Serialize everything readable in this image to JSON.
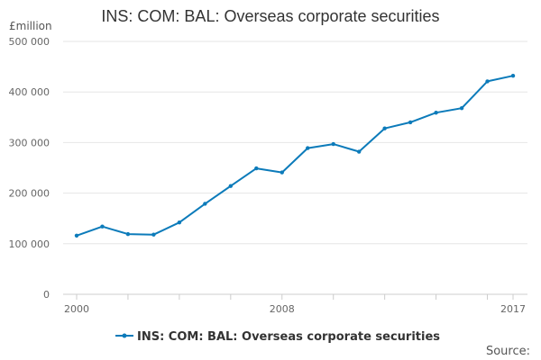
{
  "chart_data": {
    "type": "line",
    "title": "INS: COM: BAL: Overseas corporate securities",
    "y_unit": "£million",
    "x": [
      2000,
      2001,
      2002,
      2003,
      2004,
      2005,
      2006,
      2007,
      2008,
      2009,
      2010,
      2011,
      2012,
      2013,
      2014,
      2015,
      2016,
      2017
    ],
    "series": [
      {
        "name": "INS: COM: BAL: Overseas corporate securities",
        "color": "#0c7bba",
        "values": [
          116000,
          134000,
          119000,
          118000,
          142000,
          179000,
          214000,
          249000,
          241000,
          289000,
          297000,
          282000,
          328000,
          340000,
          359000,
          368000,
          421000,
          432000
        ]
      }
    ],
    "x_tick_labels": [
      "2000",
      "2008",
      "2017"
    ],
    "y_ticks": [
      0,
      100000,
      200000,
      300000,
      400000,
      500000
    ],
    "y_tick_labels": [
      "0",
      "100 000",
      "200 000",
      "300 000",
      "400 000",
      "500 000"
    ],
    "ylim": [
      0,
      500000
    ],
    "grid": true,
    "legend_position": "bottom-center"
  },
  "source_label": "Source:"
}
